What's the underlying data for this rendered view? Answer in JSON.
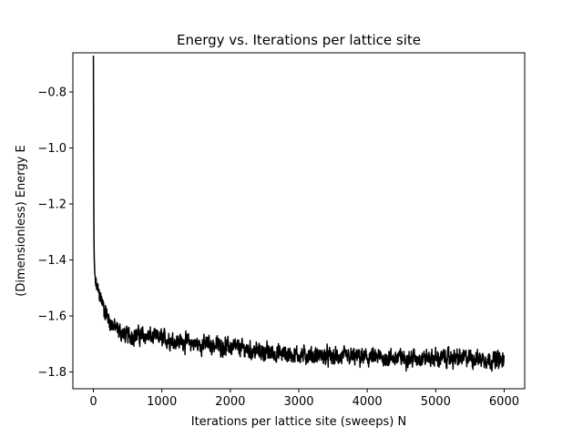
{
  "chart_data": {
    "type": "line",
    "title": "Energy vs. Iterations per lattice site",
    "xlabel": "Iterations per lattice site (sweeps) N",
    "ylabel": "(Dimensionless) Energy E",
    "xlim": [
      -300,
      6300
    ],
    "ylim": [
      -1.86,
      -0.66
    ],
    "xticks": [
      0,
      1000,
      2000,
      3000,
      4000,
      5000,
      6000
    ],
    "xtick_labels": [
      "0",
      "1000",
      "2000",
      "3000",
      "4000",
      "5000",
      "6000"
    ],
    "yticks": [
      -0.8,
      -1.0,
      -1.2,
      -1.4,
      -1.6,
      -1.8
    ],
    "ytick_labels": [
      "−0.8",
      "−1.0",
      "−1.2",
      "−1.4",
      "−1.6",
      "−1.8"
    ],
    "grid": false,
    "line_color": "#000000",
    "series": [
      {
        "x": [
          0,
          5,
          10,
          20,
          40,
          70,
          100,
          150,
          200,
          300,
          400,
          500,
          700,
          1000,
          1500,
          2000,
          2500,
          3000,
          3500,
          4000,
          4500,
          5000,
          5500,
          6000
        ],
        "y": [
          -0.67,
          -1.2,
          -1.38,
          -1.45,
          -1.49,
          -1.51,
          -1.53,
          -1.57,
          -1.6,
          -1.64,
          -1.66,
          -1.67,
          -1.67,
          -1.68,
          -1.7,
          -1.71,
          -1.73,
          -1.74,
          -1.745,
          -1.75,
          -1.75,
          -1.75,
          -1.75,
          -1.76
        ],
        "noise_amplitude": 0.018
      }
    ]
  }
}
